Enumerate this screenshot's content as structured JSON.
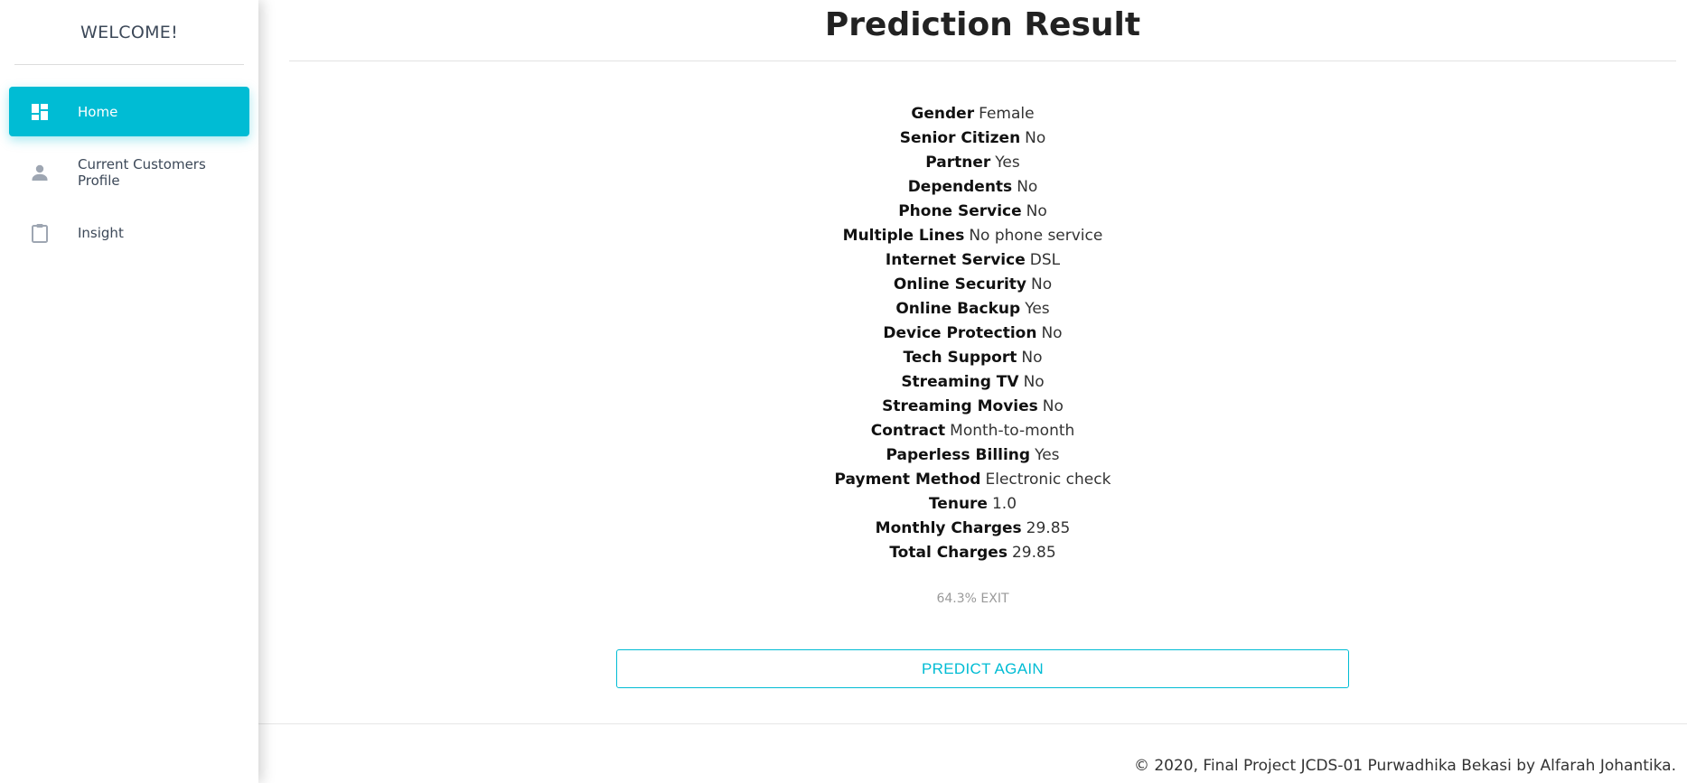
{
  "sidebar": {
    "brand": "WELCOME!",
    "items": [
      {
        "label": "Home",
        "icon": "dashboard-icon",
        "active": true
      },
      {
        "label": "Current Customers Profile",
        "icon": "person-icon",
        "active": false
      },
      {
        "label": "Insight",
        "icon": "clipboard-icon",
        "active": false
      }
    ]
  },
  "main": {
    "title": "Prediction Result",
    "fields": [
      {
        "label": "Gender",
        "value": "Female"
      },
      {
        "label": "Senior Citizen",
        "value": "No"
      },
      {
        "label": "Partner",
        "value": "Yes"
      },
      {
        "label": "Dependents",
        "value": "No"
      },
      {
        "label": "Phone Service",
        "value": "No"
      },
      {
        "label": "Multiple Lines",
        "value": "No phone service"
      },
      {
        "label": "Internet Service",
        "value": "DSL"
      },
      {
        "label": "Online Security",
        "value": "No"
      },
      {
        "label": "Online Backup",
        "value": "Yes"
      },
      {
        "label": "Device Protection",
        "value": "No"
      },
      {
        "label": "Tech Support",
        "value": "No"
      },
      {
        "label": "Streaming TV",
        "value": "No"
      },
      {
        "label": "Streaming Movies",
        "value": "No"
      },
      {
        "label": "Contract",
        "value": "Month-to-month"
      },
      {
        "label": "Paperless Billing",
        "value": "Yes"
      },
      {
        "label": "Payment Method",
        "value": "Electronic check"
      },
      {
        "label": "Tenure",
        "value": "1.0"
      },
      {
        "label": "Monthly Charges",
        "value": "29.85"
      },
      {
        "label": "Total Charges",
        "value": "29.85"
      }
    ],
    "result": "64.3% EXIT",
    "predict_again_label": "PREDICT AGAIN"
  },
  "footer": {
    "text": "© 2020, Final Project JCDS-01 Purwadhika Bekasi by Alfarah Johantika."
  },
  "colors": {
    "accent": "#00bcd4",
    "sidebar_text": "#3c4858",
    "muted": "#9a9a9a"
  }
}
